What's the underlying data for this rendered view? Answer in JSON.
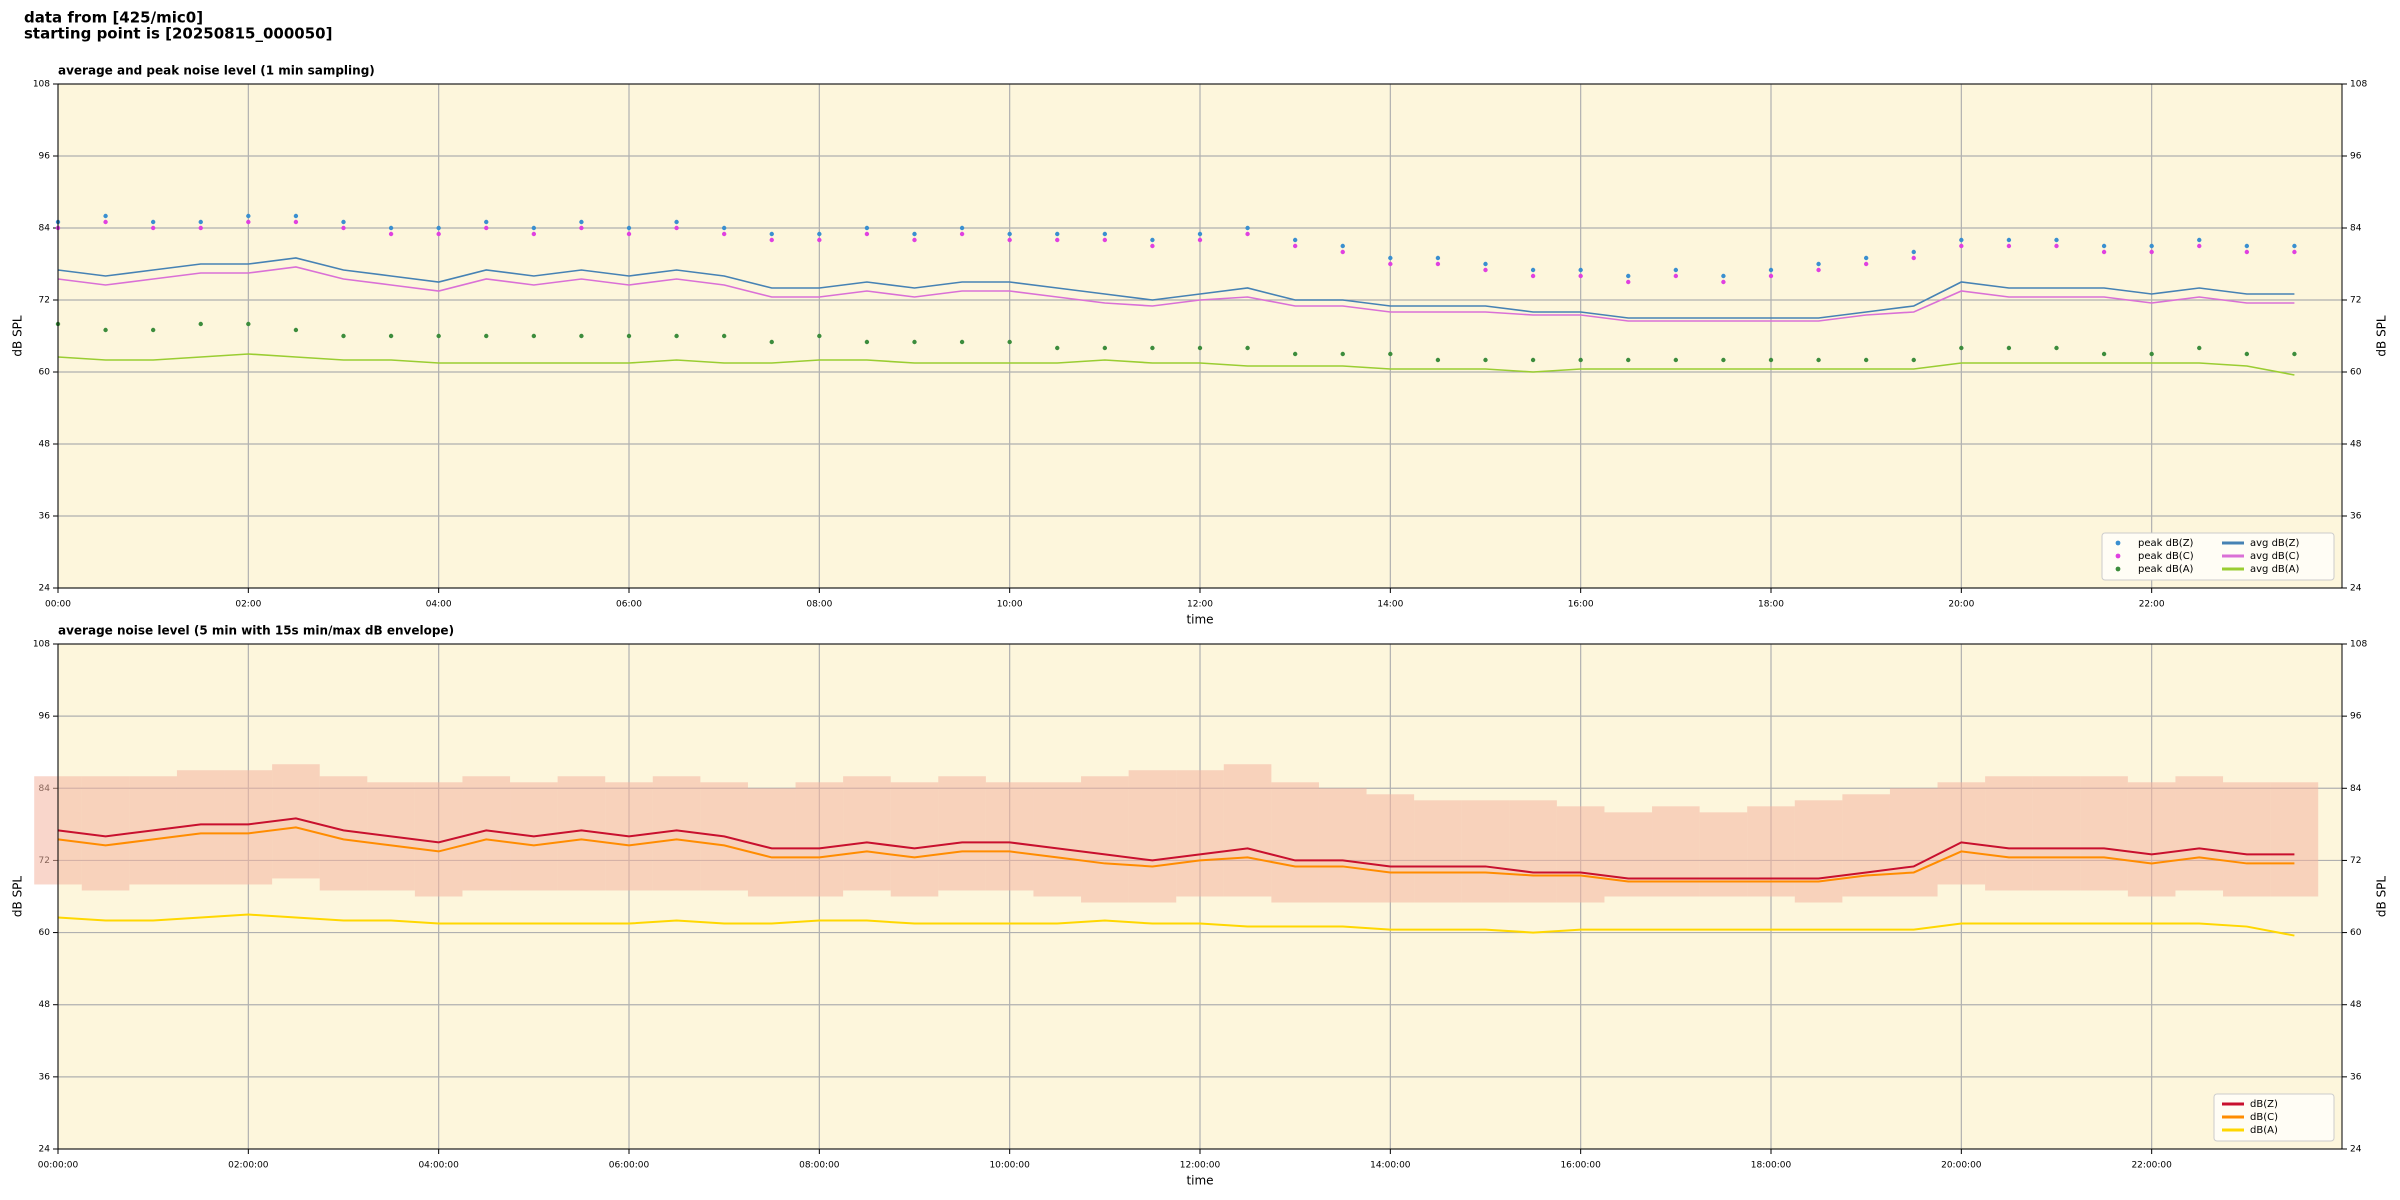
{
  "header": [
    "data from [425/mic0]",
    "starting point is [20250815_000050]"
  ],
  "chart_data": [
    {
      "type": "line",
      "title": "average and peak noise level (1 min sampling)",
      "xlabel": "time",
      "ylabel": "dB SPL",
      "x": [
        0,
        0.5,
        1,
        1.5,
        2,
        2.5,
        3,
        3.5,
        4,
        4.5,
        5,
        5.5,
        6,
        6.5,
        7,
        7.5,
        8,
        8.5,
        9,
        9.5,
        10,
        10.5,
        11,
        11.5,
        12,
        12.5,
        13,
        13.5,
        14,
        14.5,
        15,
        15.5,
        16,
        16.5,
        17,
        17.5,
        18,
        18.5,
        19,
        19.5,
        20,
        20.5,
        21,
        21.5,
        22,
        22.5,
        23,
        23.5
      ],
      "xlim": [
        0,
        24
      ],
      "xticks": [
        {
          "value": 0,
          "label": "00:00"
        },
        {
          "value": 2,
          "label": "02:00"
        },
        {
          "value": 4,
          "label": "04:00"
        },
        {
          "value": 6,
          "label": "06:00"
        },
        {
          "value": 8,
          "label": "08:00"
        },
        {
          "value": 10,
          "label": "10:00"
        },
        {
          "value": 12,
          "label": "12:00"
        },
        {
          "value": 14,
          "label": "14:00"
        },
        {
          "value": 16,
          "label": "16:00"
        },
        {
          "value": 18,
          "label": "18:00"
        },
        {
          "value": 20,
          "label": "20:00"
        },
        {
          "value": 22,
          "label": "22:00"
        }
      ],
      "ylim": [
        24,
        108
      ],
      "yticks": [
        24,
        36,
        48,
        60,
        72,
        84,
        96,
        108
      ],
      "grid": true,
      "legend": "lower right",
      "legend_columns": 2,
      "series": [
        {
          "name": "peak dB(Z)",
          "style": "points",
          "color": "#3a8fd0",
          "values": [
            85,
            86,
            85,
            85,
            86,
            86,
            85,
            84,
            84,
            85,
            84,
            85,
            84,
            85,
            84,
            83,
            83,
            84,
            83,
            84,
            83,
            83,
            83,
            82,
            83,
            84,
            82,
            81,
            79,
            79,
            78,
            77,
            77,
            76,
            77,
            76,
            77,
            78,
            79,
            80,
            82,
            82,
            82,
            81,
            81,
            82,
            81,
            81
          ]
        },
        {
          "name": "peak dB(C)",
          "style": "points",
          "color": "#e040e0",
          "values": [
            84,
            85,
            84,
            84,
            85,
            85,
            84,
            83,
            83,
            84,
            83,
            84,
            83,
            84,
            83,
            82,
            82,
            83,
            82,
            83,
            82,
            82,
            82,
            81,
            82,
            83,
            81,
            80,
            78,
            78,
            77,
            76,
            76,
            75,
            76,
            75,
            76,
            77,
            78,
            79,
            81,
            81,
            81,
            80,
            80,
            81,
            80,
            80
          ]
        },
        {
          "name": "peak dB(A)",
          "style": "points",
          "color": "#3c8c3c",
          "values": [
            68,
            67,
            67,
            68,
            68,
            67,
            66,
            66,
            66,
            66,
            66,
            66,
            66,
            66,
            66,
            65,
            66,
            65,
            65,
            65,
            65,
            64,
            64,
            64,
            64,
            64,
            63,
            63,
            63,
            62,
            62,
            62,
            62,
            62,
            62,
            62,
            62,
            62,
            62,
            62,
            64,
            64,
            64,
            63,
            63,
            64,
            63,
            63
          ]
        },
        {
          "name": "avg dB(Z)",
          "style": "line",
          "color": "#4682b4",
          "values": [
            77,
            76,
            77,
            78,
            78,
            79,
            77,
            76,
            75,
            77,
            76,
            77,
            76,
            77,
            76,
            74,
            74,
            75,
            74,
            75,
            75,
            74,
            73,
            72,
            73,
            74,
            72,
            72,
            71,
            71,
            71,
            70,
            70,
            69,
            69,
            69,
            69,
            69,
            70,
            71,
            75,
            74,
            74,
            74,
            73,
            74,
            73,
            73
          ]
        },
        {
          "name": "avg dB(C)",
          "style": "line",
          "color": "#da70d6",
          "values": [
            75.5,
            74.5,
            75.5,
            76.5,
            76.5,
            77.5,
            75.5,
            74.5,
            73.5,
            75.5,
            74.5,
            75.5,
            74.5,
            75.5,
            74.5,
            72.5,
            72.5,
            73.5,
            72.5,
            73.5,
            73.5,
            72.5,
            71.5,
            71,
            72,
            72.5,
            71,
            71,
            70,
            70,
            70,
            69.5,
            69.5,
            68.5,
            68.5,
            68.5,
            68.5,
            68.5,
            69.5,
            70,
            73.5,
            72.5,
            72.5,
            72.5,
            71.5,
            72.5,
            71.5,
            71.5
          ]
        },
        {
          "name": "avg dB(A)",
          "style": "line",
          "color": "#9acd32",
          "values": [
            62.5,
            62,
            62,
            62.5,
            63,
            62.5,
            62,
            62,
            61.5,
            61.5,
            61.5,
            61.5,
            61.5,
            62,
            61.5,
            61.5,
            62,
            62,
            61.5,
            61.5,
            61.5,
            61.5,
            62,
            61.5,
            61.5,
            61,
            61,
            61,
            60.5,
            60.5,
            60.5,
            60,
            60.5,
            60.5,
            60.5,
            60.5,
            60.5,
            60.5,
            60.5,
            60.5,
            61.5,
            61.5,
            61.5,
            61.5,
            61.5,
            61.5,
            61,
            59.5
          ]
        }
      ]
    },
    {
      "type": "line",
      "title": "average noise level (5 min with 15s min/max dB envelope)",
      "xlabel": "time",
      "ylabel": "dB SPL",
      "x": [
        0,
        0.5,
        1,
        1.5,
        2,
        2.5,
        3,
        3.5,
        4,
        4.5,
        5,
        5.5,
        6,
        6.5,
        7,
        7.5,
        8,
        8.5,
        9,
        9.5,
        10,
        10.5,
        11,
        11.5,
        12,
        12.5,
        13,
        13.5,
        14,
        14.5,
        15,
        15.5,
        16,
        16.5,
        17,
        17.5,
        18,
        18.5,
        19,
        19.5,
        20,
        20.5,
        21,
        21.5,
        22,
        22.5,
        23,
        23.5
      ],
      "xlim": [
        0,
        24
      ],
      "xticks": [
        {
          "value": 0,
          "label": "00:00:00"
        },
        {
          "value": 2,
          "label": "02:00:00"
        },
        {
          "value": 4,
          "label": "04:00:00"
        },
        {
          "value": 6,
          "label": "06:00:00"
        },
        {
          "value": 8,
          "label": "08:00:00"
        },
        {
          "value": 10,
          "label": "10:00:00"
        },
        {
          "value": 12,
          "label": "12:00:00"
        },
        {
          "value": 14,
          "label": "14:00:00"
        },
        {
          "value": 16,
          "label": "16:00:00"
        },
        {
          "value": 18,
          "label": "18:00:00"
        },
        {
          "value": 20,
          "label": "20:00:00"
        },
        {
          "value": 22,
          "label": "22:00:00"
        }
      ],
      "ylim": [
        24,
        108
      ],
      "yticks": [
        24,
        36,
        48,
        60,
        72,
        84,
        96,
        108
      ],
      "grid": true,
      "legend": "lower right",
      "legend_columns": 1,
      "envelope": {
        "color": "#f4b4a0",
        "low": [
          68,
          67,
          68,
          68,
          68,
          69,
          67,
          67,
          66,
          67,
          67,
          67,
          67,
          67,
          67,
          66,
          66,
          67,
          66,
          67,
          67,
          66,
          65,
          65,
          66,
          66,
          65,
          65,
          65,
          65,
          65,
          65,
          65,
          66,
          66,
          66,
          66,
          65,
          66,
          66,
          68,
          67,
          67,
          67,
          66,
          67,
          66,
          66
        ],
        "high": [
          86,
          86,
          86,
          87,
          87,
          88,
          86,
          85,
          85,
          86,
          85,
          86,
          85,
          86,
          85,
          84,
          85,
          86,
          85,
          86,
          85,
          85,
          86,
          87,
          87,
          88,
          85,
          84,
          83,
          82,
          82,
          82,
          81,
          80,
          81,
          80,
          81,
          82,
          83,
          84,
          85,
          86,
          86,
          86,
          85,
          86,
          85,
          85
        ]
      },
      "series": [
        {
          "name": "dB(Z)",
          "style": "line",
          "color": "#c8102e",
          "values": [
            77,
            76,
            77,
            78,
            78,
            79,
            77,
            76,
            75,
            77,
            76,
            77,
            76,
            77,
            76,
            74,
            74,
            75,
            74,
            75,
            75,
            74,
            73,
            72,
            73,
            74,
            72,
            72,
            71,
            71,
            71,
            70,
            70,
            69,
            69,
            69,
            69,
            69,
            70,
            71,
            75,
            74,
            74,
            74,
            73,
            74,
            73,
            73
          ]
        },
        {
          "name": "dB(C)",
          "style": "line",
          "color": "#ff8c00",
          "values": [
            75.5,
            74.5,
            75.5,
            76.5,
            76.5,
            77.5,
            75.5,
            74.5,
            73.5,
            75.5,
            74.5,
            75.5,
            74.5,
            75.5,
            74.5,
            72.5,
            72.5,
            73.5,
            72.5,
            73.5,
            73.5,
            72.5,
            71.5,
            71,
            72,
            72.5,
            71,
            71,
            70,
            70,
            70,
            69.5,
            69.5,
            68.5,
            68.5,
            68.5,
            68.5,
            68.5,
            69.5,
            70,
            73.5,
            72.5,
            72.5,
            72.5,
            71.5,
            72.5,
            71.5,
            71.5
          ]
        },
        {
          "name": "dB(A)",
          "style": "line",
          "color": "#ffd700",
          "values": [
            62.5,
            62,
            62,
            62.5,
            63,
            62.5,
            62,
            62,
            61.5,
            61.5,
            61.5,
            61.5,
            61.5,
            62,
            61.5,
            61.5,
            62,
            62,
            61.5,
            61.5,
            61.5,
            61.5,
            62,
            61.5,
            61.5,
            61,
            61,
            61,
            60.5,
            60.5,
            60.5,
            60,
            60.5,
            60.5,
            60.5,
            60.5,
            60.5,
            60.5,
            60.5,
            60.5,
            61.5,
            61.5,
            61.5,
            61.5,
            61.5,
            61.5,
            61,
            59.5
          ]
        }
      ]
    }
  ]
}
